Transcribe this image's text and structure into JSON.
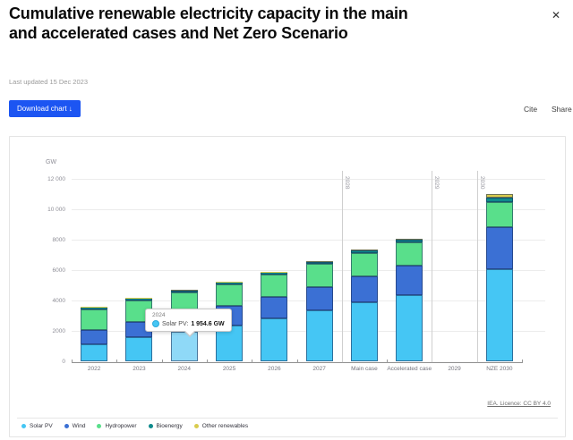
{
  "header": {
    "title": "Cumulative renewable electricity capacity in the main and accelerated cases and Net Zero Scenario",
    "last_updated": "Last updated 15 Dec 2023",
    "download_button": "Download chart ↓",
    "cite": "Cite",
    "share": "Share",
    "close_icon": "✕"
  },
  "chart_data": {
    "type": "bar",
    "stacked": true,
    "title": "Cumulative renewable electricity capacity in the main and accelerated cases and Net Zero Scenario",
    "ylabel": "GW",
    "ylim": [
      0,
      12000
    ],
    "ytick_values": [
      12000,
      10000,
      8000,
      6000,
      4000,
      2000,
      0
    ],
    "ytick_labels": [
      "12 000",
      "10 000",
      "8000",
      "6000",
      "4000",
      "2000",
      "0"
    ],
    "grid": true,
    "legend_position": "bottom",
    "categories": [
      "2022",
      "2023",
      "2024",
      "2025",
      "2026",
      "2027",
      "Main case",
      "Accelerated case",
      "2029",
      "NZE 2030"
    ],
    "series": [
      {
        "name": "Solar PV",
        "color": "#45C6F4",
        "values": [
          1163,
          1589,
          1954.6,
          2382,
          2840,
          3350,
          3904,
          4350,
          null,
          6101
        ]
      },
      {
        "name": "Wind",
        "color": "#3B70D4",
        "values": [
          899,
          1013,
          1133,
          1257,
          1395,
          1543,
          1714,
          1950,
          null,
          2750
        ]
      },
      {
        "name": "Hydropower",
        "color": "#59DF8B",
        "values": [
          1397,
          1416,
          1435,
          1461,
          1483,
          1506,
          1531,
          1550,
          null,
          1610
        ]
      },
      {
        "name": "Bioenergy",
        "color": "#0E8A8C",
        "values": [
          148,
          152,
          156,
          160,
          164,
          168,
          172,
          176,
          null,
          290
        ]
      },
      {
        "name": "Other renewables",
        "color": "#D9CC4E",
        "values": [
          17,
          17,
          18,
          18,
          19,
          19,
          20,
          20,
          null,
          233
        ]
      }
    ],
    "reference_lines": [
      {
        "label": "2028",
        "after_category_index": 5
      },
      {
        "label": "2029",
        "after_category_index": 7
      },
      {
        "label": "2030",
        "after_category_index": 8
      }
    ],
    "highlight": {
      "category": "2024",
      "series": "Solar PV",
      "color": "#8FD9F7"
    }
  },
  "tooltip": {
    "category": "2024",
    "series_label": "Solar PV:",
    "value_label": "1 954.6 GW"
  },
  "attribution": "IEA. Licence: CC BY 4.0"
}
